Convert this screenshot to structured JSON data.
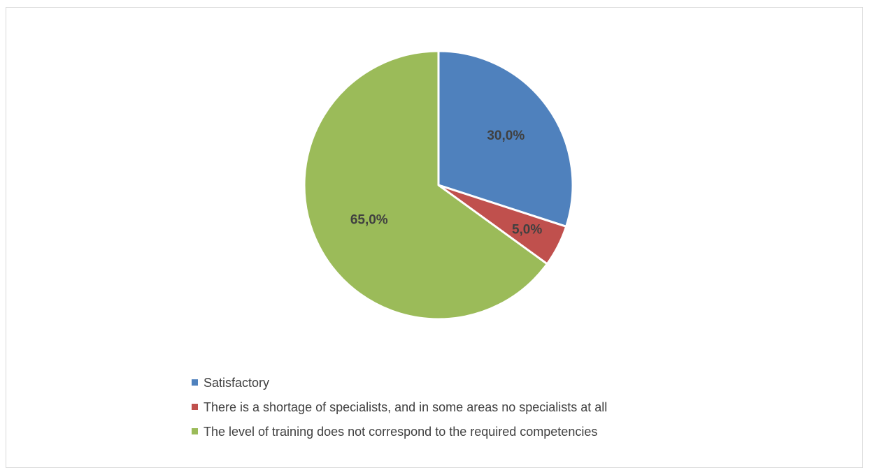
{
  "chart_data": {
    "type": "pie",
    "title": "",
    "slices": [
      {
        "label": "Satisfactory",
        "value": 30.0,
        "display": "30,0%",
        "color": "#4f81bd"
      },
      {
        "label": "There is a shortage of specialists, and in some areas no specialists at all",
        "value": 5.0,
        "display": "5,0%",
        "color": "#c0504d"
      },
      {
        "label": "The level of training does not correspond to the required competencies",
        "value": 65.0,
        "display": "65,0%",
        "color": "#9bbb59"
      }
    ],
    "legend_position": "bottom"
  }
}
